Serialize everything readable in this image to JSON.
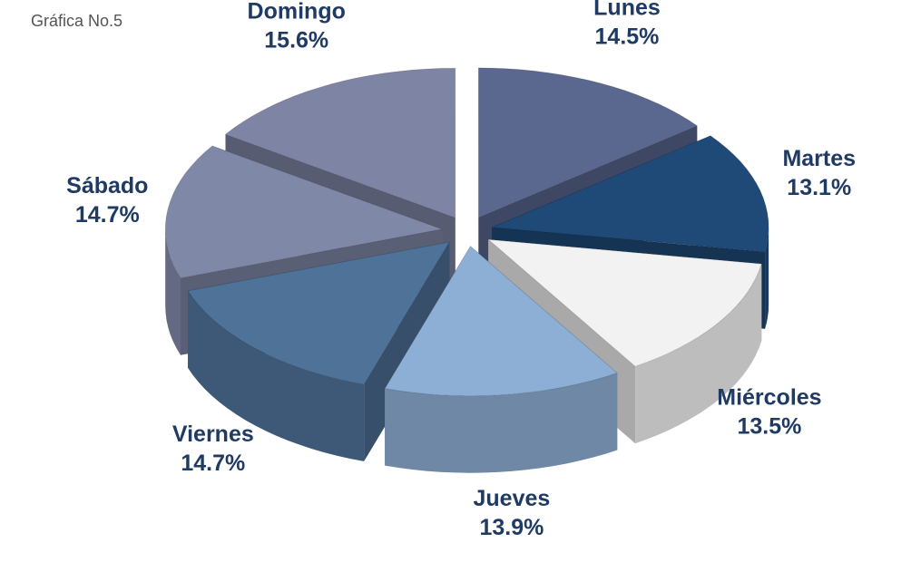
{
  "chart_data": {
    "type": "pie3d",
    "title": "Gráfica No.5",
    "categories": [
      "Lunes",
      "Martes",
      "Miércoles",
      "Jueves",
      "Viernes",
      "Sábado",
      "Domingo"
    ],
    "values": [
      14.5,
      13.1,
      13.5,
      13.9,
      14.7,
      14.7,
      15.6
    ],
    "value_labels": [
      "14.5%",
      "13.1%",
      "13.5%",
      "13.9%",
      "14.7%",
      "14.7%",
      "15.6%"
    ],
    "colors": [
      "#5a6890",
      "#1f4a78",
      "#f2f2f2",
      "#8eafd5",
      "#4f7299",
      "#8088a8",
      "#7e84a4"
    ]
  }
}
